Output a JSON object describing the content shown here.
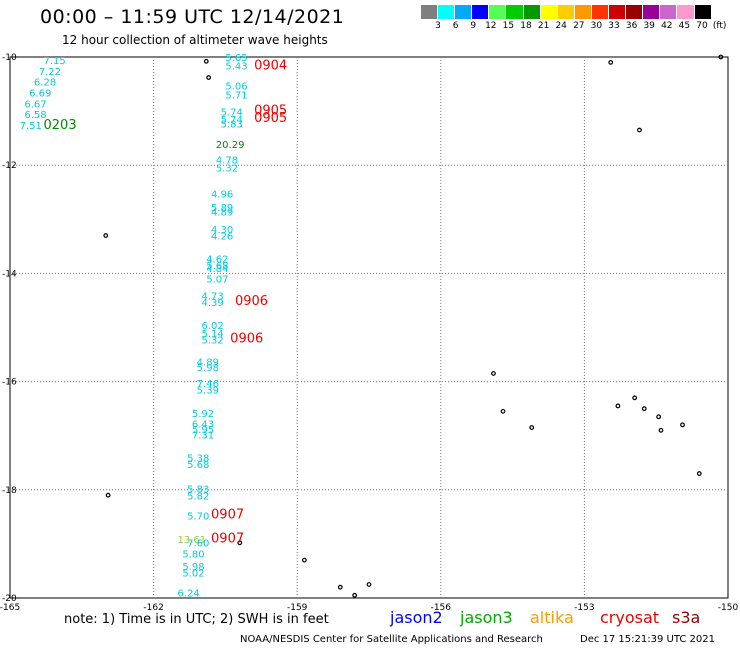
{
  "header": {
    "title": "00:00 – 11:59 UTC 12/14/2021",
    "subtitle": "12 hour collection of altimeter wave heights"
  },
  "colorbar": {
    "colors": [
      "#7f7f7f",
      "#00ffff",
      "#00aaff",
      "#0000ff",
      "#55ff55",
      "#00cc00",
      "#009900",
      "#ffff00",
      "#ffcc00",
      "#ff9900",
      "#ff3300",
      "#cc0000",
      "#990000",
      "#990099",
      "#cc66cc",
      "#ff99cc",
      "#000000"
    ],
    "labels": [
      "3",
      "6",
      "9",
      "12",
      "15",
      "18",
      "21",
      "24",
      "27",
      "30",
      "33",
      "36",
      "39",
      "42",
      "45",
      "70",
      "(ft)"
    ]
  },
  "axes": {
    "lon_ticks": [
      "-165",
      "-162",
      "-159",
      "-156",
      "-153",
      "-150"
    ],
    "lat_ticks": [
      "-10",
      "-12",
      "-14",
      "-16",
      "-18",
      "-20"
    ]
  },
  "wave_labels": [
    {
      "text": "7.15",
      "color": "#00ccdd",
      "lon": -164.3,
      "lat": -10.13
    },
    {
      "text": "7.22",
      "color": "#00ccdd",
      "lon": -164.4,
      "lat": -10.33
    },
    {
      "text": "6.28",
      "color": "#00ccdd",
      "lon": -164.5,
      "lat": -10.53
    },
    {
      "text": "6.69",
      "color": "#00ccdd",
      "lon": -164.6,
      "lat": -10.73
    },
    {
      "text": "6.67",
      "color": "#00ccdd",
      "lon": -164.7,
      "lat": -10.93
    },
    {
      "text": "6.58",
      "color": "#00ccdd",
      "lon": -164.7,
      "lat": -11.13
    },
    {
      "text": "7.51",
      "color": "#00ccdd",
      "lon": -164.8,
      "lat": -11.33
    },
    {
      "text": "0203",
      "color": "#008800",
      "lon": -164.3,
      "lat": -11.33
    },
    {
      "text": "5.65",
      "color": "#00ccdd",
      "lon": -160.5,
      "lat": -10.07
    },
    {
      "text": "5.43",
      "color": "#00ccdd",
      "lon": -160.5,
      "lat": -10.23
    },
    {
      "text": "0904",
      "color": "#ee0000",
      "lon": -159.9,
      "lat": -10.23
    },
    {
      "text": "5.06",
      "color": "#00ccdd",
      "lon": -160.5,
      "lat": -10.6
    },
    {
      "text": "5.71",
      "color": "#00ccdd",
      "lon": -160.5,
      "lat": -10.77
    },
    {
      "text": "0905",
      "color": "#ee0000",
      "lon": -159.9,
      "lat": -11.06
    },
    {
      "text": "5.74",
      "color": "#00ccdd",
      "lon": -160.6,
      "lat": -11.08
    },
    {
      "text": "5.74",
      "color": "#00ccdd",
      "lon": -160.6,
      "lat": -11.22
    },
    {
      "text": "0905",
      "color": "#ee0000",
      "lon": -159.9,
      "lat": -11.2
    },
    {
      "text": "5.83",
      "color": "#00ccdd",
      "lon": -160.6,
      "lat": -11.3
    },
    {
      "text": "20.29",
      "color": "#008800",
      "lon": -160.7,
      "lat": -11.68
    },
    {
      "text": "4.78",
      "color": "#00ccdd",
      "lon": -160.7,
      "lat": -11.97
    },
    {
      "text": "5.32",
      "color": "#00ccdd",
      "lon": -160.7,
      "lat": -12.12
    },
    {
      "text": "4.96",
      "color": "#00ccdd",
      "lon": -160.8,
      "lat": -12.6
    },
    {
      "text": "5.89",
      "color": "#00ccdd",
      "lon": -160.8,
      "lat": -12.85
    },
    {
      "text": "4.89",
      "color": "#00ccdd",
      "lon": -160.8,
      "lat": -12.93
    },
    {
      "text": "4.30",
      "color": "#00ccdd",
      "lon": -160.8,
      "lat": -13.25
    },
    {
      "text": "4.26",
      "color": "#00ccdd",
      "lon": -160.8,
      "lat": -13.37
    },
    {
      "text": "4.62",
      "color": "#00ccdd",
      "lon": -160.9,
      "lat": -13.8
    },
    {
      "text": "5.68",
      "color": "#00ccdd",
      "lon": -160.9,
      "lat": -13.92
    },
    {
      "text": "4.84",
      "color": "#00ccdd",
      "lon": -160.9,
      "lat": -13.97
    },
    {
      "text": "5.07",
      "color": "#00ccdd",
      "lon": -160.9,
      "lat": -14.17
    },
    {
      "text": "4.73",
      "color": "#00ccdd",
      "lon": -161.0,
      "lat": -14.48
    },
    {
      "text": "4.39",
      "color": "#00ccdd",
      "lon": -161.0,
      "lat": -14.6
    },
    {
      "text": "0906",
      "color": "#ee0000",
      "lon": -160.3,
      "lat": -14.58
    },
    {
      "text": "6.02",
      "color": "#00ccdd",
      "lon": -161.0,
      "lat": -15.03
    },
    {
      "text": "5.14",
      "color": "#00ccdd",
      "lon": -161.0,
      "lat": -15.18
    },
    {
      "text": "5.32",
      "color": "#00ccdd",
      "lon": -161.0,
      "lat": -15.3
    },
    {
      "text": "0906",
      "color": "#ee0000",
      "lon": -160.4,
      "lat": -15.28
    },
    {
      "text": "4.89",
      "color": "#00ccdd",
      "lon": -161.1,
      "lat": -15.7
    },
    {
      "text": "5.98",
      "color": "#00ccdd",
      "lon": -161.1,
      "lat": -15.8
    },
    {
      "text": "7.46",
      "color": "#00ccdd",
      "lon": -161.1,
      "lat": -16.1
    },
    {
      "text": "5.39",
      "color": "#00ccdd",
      "lon": -161.1,
      "lat": -16.22
    },
    {
      "text": "5.92",
      "color": "#00ccdd",
      "lon": -161.2,
      "lat": -16.65
    },
    {
      "text": "6.43",
      "color": "#00ccdd",
      "lon": -161.2,
      "lat": -16.85
    },
    {
      "text": "5.95",
      "color": "#00ccdd",
      "lon": -161.2,
      "lat": -16.95
    },
    {
      "text": "7.31",
      "color": "#00ccdd",
      "lon": -161.2,
      "lat": -17.05
    },
    {
      "text": "5.38",
      "color": "#00ccdd",
      "lon": -161.3,
      "lat": -17.48
    },
    {
      "text": "5.68",
      "color": "#00ccdd",
      "lon": -161.3,
      "lat": -17.6
    },
    {
      "text": "5.83",
      "color": "#00ccdd",
      "lon": -161.3,
      "lat": -18.05
    },
    {
      "text": "5.82",
      "color": "#00ccdd",
      "lon": -161.3,
      "lat": -18.18
    },
    {
      "text": "5.70",
      "color": "#00ccdd",
      "lon": -161.3,
      "lat": -18.55
    },
    {
      "text": "0907",
      "color": "#ee0000",
      "lon": -160.8,
      "lat": -18.53
    },
    {
      "text": "13.61",
      "color": "#99cc33",
      "lon": -161.5,
      "lat": -18.98
    },
    {
      "text": "7.60",
      "color": "#00ccdd",
      "lon": -161.3,
      "lat": -19.05
    },
    {
      "text": "0907",
      "color": "#ee0000",
      "lon": -160.8,
      "lat": -18.97
    },
    {
      "text": "5.80",
      "color": "#00ccdd",
      "lon": -161.4,
      "lat": -19.25
    },
    {
      "text": "5.98",
      "color": "#00ccdd",
      "lon": -161.4,
      "lat": -19.48
    },
    {
      "text": "5.02",
      "color": "#00ccdd",
      "lon": -161.4,
      "lat": -19.6
    },
    {
      "text": "6.24",
      "color": "#00ccdd",
      "lon": -161.5,
      "lat": -19.97
    }
  ],
  "islands": [
    {
      "lon": -160.9,
      "lat": -10.08
    },
    {
      "lon": -160.85,
      "lat": -10.38
    },
    {
      "lon": -163.0,
      "lat": -13.3
    },
    {
      "lon": -152.45,
      "lat": -10.1
    },
    {
      "lon": -151.85,
      "lat": -11.35
    },
    {
      "lon": -150.15,
      "lat": -10.0
    },
    {
      "lon": -154.9,
      "lat": -15.85
    },
    {
      "lon": -154.7,
      "lat": -16.55
    },
    {
      "lon": -154.1,
      "lat": -16.85
    },
    {
      "lon": -152.3,
      "lat": -16.45
    },
    {
      "lon": -151.95,
      "lat": -16.3
    },
    {
      "lon": -151.75,
      "lat": -16.5
    },
    {
      "lon": -151.45,
      "lat": -16.65
    },
    {
      "lon": -151.4,
      "lat": -16.9
    },
    {
      "lon": -150.95,
      "lat": -16.8
    },
    {
      "lon": -150.6,
      "lat": -17.7
    },
    {
      "lon": -162.95,
      "lat": -18.1
    },
    {
      "lon": -160.2,
      "lat": -18.98
    },
    {
      "lon": -158.85,
      "lat": -19.3
    },
    {
      "lon": -158.1,
      "lat": -19.8
    },
    {
      "lon": -157.8,
      "lat": -19.95
    },
    {
      "lon": -157.5,
      "lat": -19.75
    }
  ],
  "footer": {
    "note": "note: 1) Time is in UTC; 2) SWH is in feet",
    "credit": "NOAA/NESDIS Center for Satellite Applications and Research",
    "timestamp": "Dec 17 15:21:39 UTC 2021",
    "satellites": [
      {
        "name": "jason2",
        "color": "#0000ff"
      },
      {
        "name": "jason3",
        "color": "#00aa00"
      },
      {
        "name": "altika",
        "color": "#ff9900"
      },
      {
        "name": "cryosat",
        "color": "#ee0000"
      },
      {
        "name": "s3a",
        "color": "#990000"
      }
    ]
  }
}
